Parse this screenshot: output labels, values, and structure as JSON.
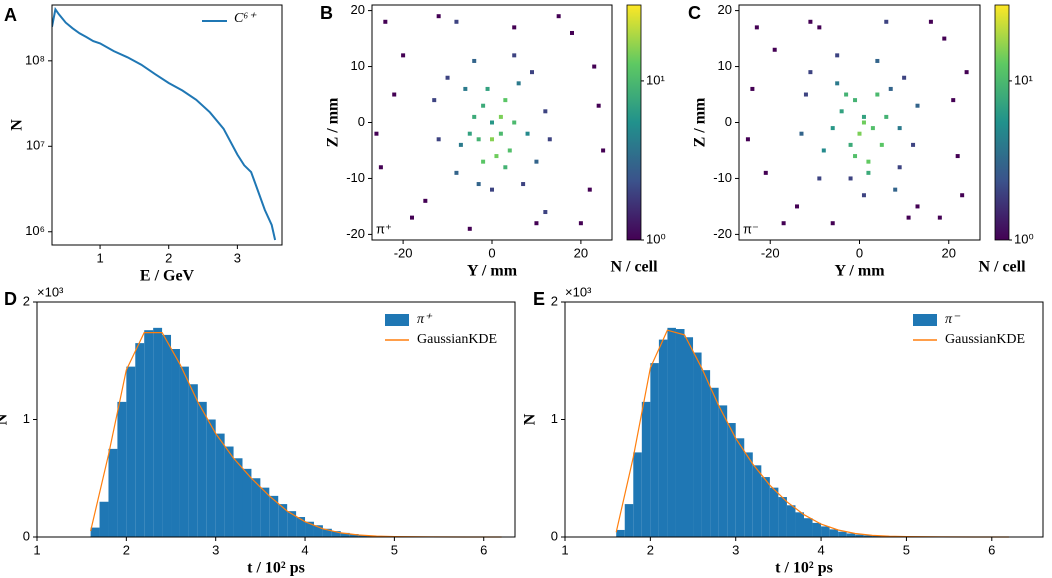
{
  "chart_data": [
    {
      "type": "line",
      "panel": "A",
      "xlabel": "E / GeV",
      "ylabel": "N",
      "yscale": "log",
      "xlim": [
        0.3,
        3.65
      ],
      "xticks": [
        1,
        2,
        3
      ],
      "ylim": [
        700000,
        450000000
      ],
      "yticks": [
        {
          "value": 1000000,
          "label": "10⁶"
        },
        {
          "value": 10000000,
          "label": "10⁷"
        },
        {
          "value": 100000000,
          "label": "10⁸"
        }
      ],
      "legend": "upper right",
      "x": [
        0.3,
        0.35,
        0.4,
        0.5,
        0.6,
        0.7,
        0.8,
        0.9,
        1.0,
        1.2,
        1.4,
        1.6,
        1.8,
        2.0,
        2.2,
        2.4,
        2.6,
        2.8,
        3.0,
        3.1,
        3.2,
        3.3,
        3.4,
        3.5,
        3.55
      ],
      "series": [
        {
          "name": "C⁶⁺",
          "color": "#1f77b4",
          "values": [
            250000000,
            400000000,
            350000000,
            280000000,
            240000000,
            210000000,
            190000000,
            170000000,
            160000000,
            130000000,
            110000000,
            90000000,
            70000000,
            55000000,
            45000000,
            35000000,
            25000000,
            16000000,
            8000000,
            6000000,
            5000000,
            3000000,
            1800000,
            1200000,
            800000
          ]
        }
      ]
    },
    {
      "type": "scatter",
      "panel": "B",
      "xlabel": "Y / mm",
      "ylabel": "Z / mm",
      "annotation": "π⁺",
      "xlim": [
        -27,
        27
      ],
      "xticks": [
        -20,
        0,
        20
      ],
      "ylim": [
        -21,
        21
      ],
      "yticks": [
        -20,
        -10,
        0,
        10,
        20
      ],
      "cmap": "viridis",
      "cscale": "log",
      "clim": [
        1,
        30
      ],
      "cticks": [
        {
          "value": 1,
          "label": "10⁰"
        },
        {
          "value": 10,
          "label": "10¹"
        }
      ],
      "colorbar_label": "N / cell",
      "x": [
        -24,
        -18,
        -12,
        -22,
        -25,
        18,
        22,
        24,
        10,
        -5,
        15,
        -20,
        20,
        -15,
        23,
        -8,
        5,
        -26,
        25,
        12,
        -10,
        -12,
        -8,
        9,
        12,
        10,
        -4,
        5,
        0,
        -3,
        7,
        -13,
        13,
        -6,
        6,
        -7,
        8,
        -2,
        2,
        0,
        3,
        -3,
        1,
        -1,
        4,
        -4,
        2,
        -2,
        5,
        0,
        3,
        -5
      ],
      "y": [
        18,
        -17,
        19,
        5,
        -8,
        16,
        -12,
        3,
        -18,
        -19,
        19,
        12,
        -18,
        -14,
        10,
        18,
        17,
        -2,
        -5,
        -16,
        8,
        -3,
        -9,
        9,
        2,
        -7,
        11,
        12,
        -12,
        -11,
        -11,
        4,
        -3,
        6,
        7,
        -4,
        -2,
        3,
        -2,
        0,
        4,
        -3,
        -6,
        6,
        -5,
        1,
        1,
        -7,
        0,
        -3,
        -8,
        -2
      ],
      "values": [
        1,
        1,
        1,
        1,
        1,
        1,
        1,
        1,
        1,
        1,
        1,
        1,
        1,
        1,
        1,
        2,
        1,
        1,
        1,
        2,
        2,
        2,
        3,
        2,
        2,
        3,
        3,
        2,
        2,
        3,
        2,
        2,
        2,
        4,
        4,
        4,
        5,
        8,
        10,
        6,
        12,
        9,
        14,
        7,
        11,
        8,
        15,
        12,
        10,
        16,
        9,
        7
      ]
    },
    {
      "type": "scatter",
      "panel": "C",
      "xlabel": "Y / mm",
      "ylabel": "Z / mm",
      "annotation": "π⁻",
      "xlim": [
        -27,
        27
      ],
      "xticks": [
        -20,
        0,
        20
      ],
      "ylim": [
        -21,
        21
      ],
      "yticks": [
        -20,
        -10,
        0,
        10,
        20
      ],
      "cmap": "viridis",
      "cscale": "log",
      "clim": [
        1,
        30
      ],
      "cticks": [
        {
          "value": 1,
          "label": "10⁰"
        },
        {
          "value": 10,
          "label": "10¹"
        }
      ],
      "colorbar_label": "N / cell",
      "x": [
        -23,
        -17,
        -11,
        -24,
        -21,
        19,
        23,
        21,
        11,
        -6,
        16,
        -19,
        18,
        -14,
        24,
        -9,
        6,
        -25,
        22,
        13,
        -11,
        -13,
        -9,
        10,
        13,
        9,
        -5,
        4,
        1,
        -2,
        8,
        -12,
        12,
        -5,
        7,
        -8,
        9,
        -1,
        3,
        1,
        4,
        -2,
        2,
        -3,
        5,
        -4,
        1,
        -1,
        6,
        0,
        2,
        -6
      ],
      "y": [
        17,
        -18,
        18,
        6,
        -9,
        15,
        -13,
        4,
        -17,
        -18,
        18,
        13,
        -17,
        -15,
        9,
        17,
        18,
        -3,
        -6,
        -15,
        9,
        -2,
        -10,
        8,
        3,
        -8,
        12,
        11,
        -13,
        -10,
        -12,
        5,
        -4,
        7,
        6,
        -5,
        -1,
        4,
        -1,
        1,
        5,
        -4,
        -7,
        5,
        -4,
        2,
        0,
        -6,
        1,
        -2,
        -9,
        -1
      ],
      "values": [
        1,
        1,
        1,
        1,
        1,
        1,
        1,
        1,
        1,
        1,
        1,
        1,
        1,
        1,
        1,
        1,
        2,
        1,
        1,
        1,
        2,
        3,
        2,
        2,
        3,
        2,
        2,
        3,
        2,
        2,
        3,
        2,
        2,
        4,
        3,
        5,
        4,
        9,
        11,
        7,
        10,
        8,
        13,
        9,
        12,
        7,
        14,
        11,
        9,
        15,
        8,
        6
      ]
    },
    {
      "type": "histogram",
      "panel": "D",
      "xlabel": "t / 10² ps",
      "ylabel": "N",
      "y_offset_label": "×10³",
      "xlim": [
        1,
        6.35
      ],
      "xticks": [
        1,
        2,
        3,
        4,
        5,
        6
      ],
      "ylim": [
        0,
        2
      ],
      "yticks": [
        0,
        1,
        2
      ],
      "legend": "upper right",
      "bins": [
        1.6,
        1.7,
        1.8,
        1.9,
        2.0,
        2.1,
        2.2,
        2.3,
        2.4,
        2.5,
        2.6,
        2.7,
        2.8,
        2.9,
        3.0,
        3.1,
        3.2,
        3.3,
        3.4,
        3.5,
        3.6,
        3.7,
        3.8,
        3.9,
        4.0,
        4.1,
        4.2,
        4.3,
        4.4,
        4.5,
        4.6,
        4.7,
        4.8,
        4.9,
        5.0,
        5.1,
        5.2
      ],
      "series": [
        {
          "name": "π⁺",
          "color": "#1f77b4",
          "values": [
            0.08,
            0.3,
            0.75,
            1.15,
            1.45,
            1.65,
            1.76,
            1.78,
            1.72,
            1.6,
            1.45,
            1.3,
            1.15,
            1.0,
            0.88,
            0.77,
            0.67,
            0.58,
            0.5,
            0.42,
            0.35,
            0.28,
            0.22,
            0.17,
            0.13,
            0.1,
            0.07,
            0.05,
            0.035,
            0.025,
            0.017,
            0.012,
            0.008,
            0.005,
            0.003,
            0.002
          ]
        }
      ],
      "kde": {
        "name": "GaussianKDE",
        "color": "#ff7f0e",
        "x": [
          1.6,
          1.8,
          2.0,
          2.2,
          2.4,
          2.6,
          2.8,
          3.0,
          3.2,
          3.4,
          3.6,
          3.8,
          4.0,
          4.2,
          4.4,
          4.6,
          4.8,
          5.0,
          5.4,
          5.8,
          6.2
        ],
        "values": [
          0.05,
          0.7,
          1.42,
          1.74,
          1.74,
          1.47,
          1.15,
          0.88,
          0.67,
          0.5,
          0.35,
          0.22,
          0.13,
          0.07,
          0.035,
          0.017,
          0.008,
          0.003,
          0.001,
          0,
          0
        ]
      }
    },
    {
      "type": "histogram",
      "panel": "E",
      "xlabel": "t / 10² ps",
      "ylabel": "N",
      "y_offset_label": "×10³",
      "xlim": [
        1,
        6.6
      ],
      "xticks": [
        1,
        2,
        3,
        4,
        5,
        6
      ],
      "ylim": [
        0,
        2
      ],
      "yticks": [
        0,
        1,
        2
      ],
      "legend": "upper right",
      "bins": [
        1.6,
        1.7,
        1.8,
        1.9,
        2.0,
        2.1,
        2.2,
        2.3,
        2.4,
        2.5,
        2.6,
        2.7,
        2.8,
        2.9,
        3.0,
        3.1,
        3.2,
        3.3,
        3.4,
        3.5,
        3.6,
        3.7,
        3.8,
        3.9,
        4.0,
        4.1,
        4.2,
        4.3,
        4.4,
        4.5,
        4.6,
        4.7,
        4.8,
        4.9,
        5.0,
        5.1,
        5.2
      ],
      "series": [
        {
          "name": "π⁻",
          "color": "#1f77b4",
          "values": [
            0.06,
            0.28,
            0.72,
            1.15,
            1.48,
            1.68,
            1.78,
            1.77,
            1.7,
            1.57,
            1.42,
            1.27,
            1.12,
            0.97,
            0.84,
            0.72,
            0.61,
            0.51,
            0.42,
            0.34,
            0.27,
            0.21,
            0.16,
            0.12,
            0.09,
            0.065,
            0.045,
            0.03,
            0.02,
            0.014,
            0.01,
            0.007,
            0.005,
            0.003,
            0.002,
            0.001
          ]
        }
      ],
      "kde": {
        "name": "GaussianKDE",
        "color": "#ff7f0e",
        "x": [
          1.6,
          1.8,
          2.0,
          2.2,
          2.4,
          2.6,
          2.8,
          3.0,
          3.2,
          3.4,
          3.6,
          3.8,
          4.0,
          4.2,
          4.4,
          4.6,
          4.8,
          5.0,
          5.4,
          5.8,
          6.2
        ],
        "values": [
          0.04,
          0.68,
          1.44,
          1.76,
          1.72,
          1.44,
          1.12,
          0.84,
          0.62,
          0.44,
          0.3,
          0.19,
          0.11,
          0.06,
          0.03,
          0.014,
          0.007,
          0.003,
          0.001,
          0,
          0
        ]
      }
    }
  ]
}
